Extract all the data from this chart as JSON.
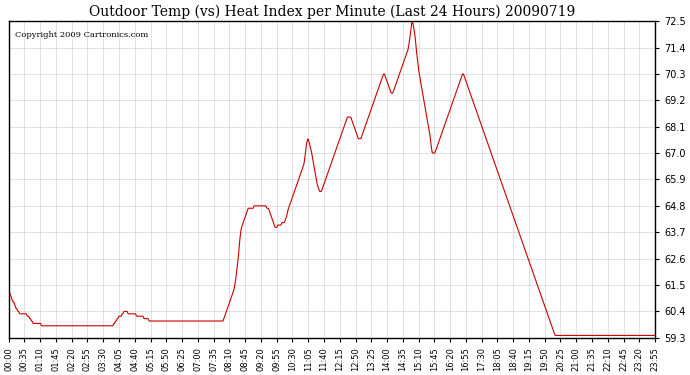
{
  "title": "Outdoor Temp (vs) Heat Index per Minute (Last 24 Hours) 20090719",
  "copyright": "Copyright 2009 Cartronics.com",
  "line_color": "#cc0000",
  "background_color": "#ffffff",
  "grid_color": "#cccccc",
  "ylabel_right": true,
  "ylim": [
    59.3,
    72.5
  ],
  "yticks": [
    59.3,
    60.4,
    61.5,
    62.6,
    63.7,
    64.8,
    65.9,
    67.0,
    68.1,
    69.2,
    70.3,
    71.4,
    72.5
  ],
  "x_labels": [
    "00:00",
    "00:35",
    "01:10",
    "01:45",
    "02:20",
    "02:55",
    "03:30",
    "04:05",
    "04:40",
    "05:15",
    "05:50",
    "06:25",
    "07:00",
    "07:35",
    "08:10",
    "08:45",
    "09:20",
    "09:55",
    "10:30",
    "11:05",
    "11:40",
    "12:15",
    "12:50",
    "13:25",
    "14:00",
    "14:35",
    "15:10",
    "15:45",
    "16:20",
    "16:55",
    "17:30",
    "18:05",
    "18:40",
    "19:15",
    "19:50",
    "20:25",
    "21:00",
    "21:35",
    "22:10",
    "22:45",
    "23:20",
    "23:55"
  ],
  "n_points": 1440,
  "data_y": [
    61.2,
    61.2,
    61.1,
    61.0,
    60.9,
    60.8,
    60.8,
    60.7,
    60.6,
    60.5,
    60.5,
    60.4,
    60.4,
    60.3,
    60.3,
    60.3,
    60.3,
    60.3,
    60.3,
    60.3,
    60.3,
    60.3,
    60.2,
    60.2,
    60.2,
    60.1,
    60.1,
    60.0,
    60.0,
    59.9,
    59.9,
    59.9,
    59.9,
    59.9,
    59.9,
    59.9,
    59.9,
    59.9,
    59.9,
    59.8,
    59.8,
    59.8,
    59.8,
    59.8,
    59.8,
    59.8,
    59.8,
    59.8,
    59.8,
    59.8,
    59.8,
    59.8,
    59.8,
    59.8,
    59.8,
    59.8,
    59.8,
    59.8,
    59.8,
    59.8,
    59.8,
    59.8,
    59.8,
    59.8,
    59.8,
    59.8,
    59.8,
    59.8,
    59.8,
    59.8,
    59.8,
    59.8,
    59.8,
    59.8,
    59.8,
    59.8,
    59.8,
    59.8,
    59.8,
    59.8,
    59.8,
    59.8,
    59.8,
    59.8,
    59.8,
    59.8,
    59.8,
    59.8,
    59.8,
    59.8,
    59.8,
    59.8,
    59.8,
    59.8,
    59.8,
    59.8,
    59.8,
    59.8,
    59.8,
    59.8,
    59.8,
    59.8,
    59.8,
    59.8,
    59.8,
    59.8,
    59.8,
    59.8,
    59.8,
    59.8,
    59.8,
    59.8,
    59.8,
    59.8,
    59.8,
    59.8,
    59.8,
    59.8,
    59.8,
    59.8,
    59.8,
    59.8,
    59.8,
    59.8,
    59.8,
    59.9,
    59.9,
    60.0,
    60.0,
    60.1,
    60.1,
    60.2,
    60.2,
    60.2,
    60.2,
    60.3,
    60.3,
    60.4,
    60.4,
    60.4,
    60.4,
    60.4,
    60.3,
    60.3,
    60.3,
    60.3,
    60.3,
    60.3,
    60.3,
    60.3,
    60.3,
    60.3,
    60.2,
    60.2,
    60.2,
    60.2,
    60.2,
    60.2,
    60.2,
    60.2,
    60.2,
    60.1,
    60.1,
    60.1,
    60.1,
    60.1,
    60.1,
    60.0,
    60.0,
    60.0,
    60.0,
    60.0,
    60.0,
    60.0,
    60.0,
    60.0,
    60.0,
    60.0,
    60.0,
    60.0,
    60.0,
    60.0,
    60.0,
    60.0,
    60.0,
    60.0,
    60.0,
    60.0,
    60.0,
    60.0,
    60.0,
    60.0,
    60.0,
    60.0,
    60.0,
    60.0,
    60.0,
    60.0,
    60.0,
    60.0,
    60.0,
    60.0,
    60.0,
    60.0,
    60.0,
    60.0,
    60.0,
    60.0,
    60.0,
    60.0,
    60.0,
    60.0,
    60.0,
    60.0,
    60.0,
    60.0,
    60.0,
    60.0,
    60.0,
    60.0,
    60.0,
    60.0,
    60.0,
    60.0,
    60.0,
    60.0,
    60.0,
    60.0,
    60.0,
    60.0,
    60.0,
    60.0,
    60.0,
    60.0,
    60.0,
    60.0,
    60.0,
    60.0,
    60.0,
    60.0,
    60.0,
    60.0,
    60.0,
    60.0,
    60.0,
    60.0,
    60.0,
    60.0,
    60.0,
    60.0,
    60.0,
    60.0,
    60.0,
    60.0,
    60.0,
    60.0,
    60.1,
    60.2,
    60.3,
    60.4,
    60.5,
    60.6,
    60.7,
    60.8,
    60.9,
    61.0,
    61.1,
    61.2,
    61.3,
    61.5,
    61.7,
    62.0,
    62.3,
    62.6,
    63.0,
    63.4,
    63.7,
    63.9,
    64.0,
    64.1,
    64.2,
    64.3,
    64.4,
    64.5,
    64.6,
    64.7,
    64.7,
    64.7,
    64.7,
    64.7,
    64.7,
    64.7,
    64.8,
    64.8,
    64.8,
    64.8,
    64.8,
    64.8,
    64.8,
    64.8,
    64.8,
    64.8,
    64.8,
    64.8,
    64.8,
    64.8,
    64.8,
    64.7,
    64.7,
    64.7,
    64.6,
    64.5,
    64.4,
    64.3,
    64.2,
    64.1,
    64.0,
    63.9,
    63.9,
    63.9,
    64.0,
    64.0,
    64.0,
    64.0,
    64.0,
    64.1,
    64.1,
    64.1,
    64.1,
    64.2,
    64.3,
    64.4,
    64.6,
    64.7,
    64.8,
    64.9,
    65.0,
    65.1,
    65.2,
    65.3,
    65.4,
    65.5,
    65.6,
    65.7,
    65.8,
    65.9,
    66.0,
    66.1,
    66.2,
    66.3,
    66.4,
    66.5,
    66.7,
    67.0,
    67.3,
    67.5,
    67.6,
    67.5,
    67.4,
    67.2,
    67.1,
    66.9,
    66.7,
    66.5,
    66.3,
    66.1,
    65.9,
    65.7,
    65.6,
    65.5,
    65.4,
    65.4,
    65.4,
    65.5,
    65.6,
    65.7,
    65.8,
    65.9,
    66.0,
    66.1,
    66.2,
    66.3,
    66.4,
    66.5,
    66.6,
    66.7,
    66.8,
    66.9,
    67.0,
    67.1,
    67.2,
    67.3,
    67.4,
    67.5,
    67.6,
    67.7,
    67.8,
    67.9,
    68.0,
    68.1,
    68.2,
    68.3,
    68.4,
    68.5,
    68.5,
    68.5,
    68.5,
    68.5,
    68.4,
    68.3,
    68.2,
    68.1,
    68.0,
    67.9,
    67.8,
    67.7,
    67.6,
    67.6,
    67.6,
    67.6,
    67.7,
    67.8,
    67.9,
    68.0,
    68.1,
    68.2,
    68.3,
    68.4,
    68.5,
    68.6,
    68.7,
    68.8,
    68.9,
    69.0,
    69.1,
    69.2,
    69.3,
    69.4,
    69.5,
    69.6,
    69.7,
    69.8,
    69.9,
    70.0,
    70.1,
    70.2,
    70.3,
    70.3,
    70.2,
    70.1,
    70.0,
    69.9,
    69.8,
    69.7,
    69.6,
    69.5,
    69.5,
    69.5,
    69.6,
    69.7,
    69.8,
    69.9,
    70.0,
    70.1,
    70.2,
    70.3,
    70.4,
    70.5,
    70.6,
    70.7,
    70.8,
    70.9,
    71.0,
    71.1,
    71.2,
    71.3,
    71.5,
    71.7,
    72.0,
    72.3,
    72.5,
    72.4,
    72.2,
    72.0,
    71.7,
    71.3,
    71.0,
    70.7,
    70.4,
    70.2,
    70.0,
    69.8,
    69.6,
    69.4,
    69.2,
    69.0,
    68.8,
    68.6,
    68.4,
    68.2,
    68.0,
    67.8,
    67.5,
    67.2,
    67.0,
    67.0,
    67.0,
    67.0,
    67.1,
    67.2,
    67.3,
    67.4,
    67.5,
    67.6,
    67.7,
    67.8,
    67.9,
    68.0,
    68.1,
    68.2,
    68.3,
    68.4,
    68.5,
    68.6,
    68.7,
    68.8,
    68.9,
    69.0,
    69.1,
    69.2,
    69.3,
    69.4,
    69.5,
    69.6,
    69.7,
    69.8,
    69.9,
    70.0,
    70.1,
    70.2,
    70.3,
    70.3,
    70.2,
    70.1,
    70.0,
    69.9,
    69.8,
    69.7,
    69.6,
    69.5,
    69.4,
    69.3,
    69.2,
    69.1,
    69.0,
    68.9,
    68.8,
    68.7,
    68.6,
    68.5,
    68.4,
    68.3,
    68.2,
    68.1,
    68.0,
    67.9,
    67.8,
    67.7,
    67.6,
    67.5,
    67.4,
    67.3,
    67.2,
    67.1,
    67.0,
    66.9,
    66.8,
    66.7,
    66.6,
    66.5,
    66.4,
    66.3,
    66.2,
    66.1,
    66.0,
    65.9,
    65.8,
    65.7,
    65.6,
    65.5,
    65.4,
    65.3,
    65.2,
    65.1,
    65.0,
    64.9,
    64.8,
    64.7,
    64.6,
    64.5,
    64.4,
    64.3,
    64.2,
    64.1,
    64.0,
    63.9,
    63.8,
    63.7,
    63.6,
    63.5,
    63.4,
    63.3,
    63.2,
    63.1,
    63.0,
    62.9,
    62.8,
    62.7,
    62.6,
    62.5,
    62.4,
    62.3,
    62.2,
    62.1,
    62.0,
    61.9,
    61.8,
    61.7,
    61.6,
    61.5,
    61.4,
    61.3,
    61.2,
    61.1,
    61.0,
    60.9,
    60.8,
    60.7,
    60.6,
    60.5,
    60.4,
    60.3,
    60.2,
    60.1,
    60.0,
    59.9,
    59.8,
    59.7,
    59.6,
    59.5,
    59.4,
    59.4,
    59.4,
    59.4,
    59.4,
    59.4,
    59.4,
    59.4,
    59.4,
    59.4,
    59.4,
    59.4,
    59.4,
    59.4,
    59.4,
    59.4,
    59.4,
    59.4,
    59.4,
    59.4,
    59.4,
    59.4,
    59.4,
    59.4,
    59.4,
    59.4,
    59.4,
    59.4,
    59.4,
    59.4,
    59.4,
    59.4,
    59.4,
    59.4,
    59.4,
    59.4,
    59.4,
    59.4,
    59.4,
    59.4,
    59.4,
    59.4,
    59.4,
    59.4,
    59.4,
    59.4,
    59.4,
    59.4,
    59.4,
    59.4,
    59.4,
    59.4,
    59.4,
    59.4,
    59.4,
    59.4,
    59.4,
    59.4,
    59.4,
    59.4,
    59.4,
    59.4,
    59.4,
    59.4,
    59.4,
    59.4,
    59.4,
    59.4,
    59.4,
    59.4,
    59.4,
    59.4,
    59.4,
    59.4,
    59.4,
    59.4,
    59.4,
    59.4,
    59.4,
    59.4,
    59.4,
    59.4,
    59.4,
    59.4,
    59.4,
    59.4,
    59.4,
    59.4,
    59.4,
    59.4,
    59.4,
    59.4,
    59.4,
    59.4,
    59.4,
    59.4,
    59.4,
    59.4,
    59.4,
    59.4,
    59.4,
    59.4,
    59.4,
    59.4,
    59.4,
    59.4,
    59.4,
    59.4,
    59.4,
    59.4,
    59.4,
    59.4,
    59.4,
    59.4,
    59.4,
    59.4,
    59.4,
    59.4,
    59.4,
    59.4
  ]
}
